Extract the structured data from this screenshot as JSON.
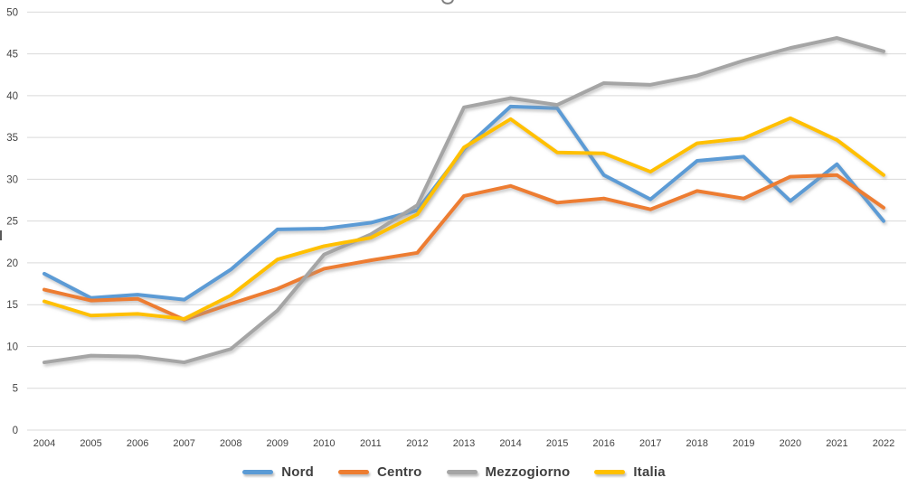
{
  "chart_data": {
    "type": "line",
    "title_cropped": true,
    "title_visible_fragment": "∪",
    "x": [
      "2004",
      "2005",
      "2006",
      "2007",
      "2008",
      "2009",
      "2010",
      "2011",
      "2012",
      "2013",
      "2014",
      "2015",
      "2016",
      "2017",
      "2018",
      "2019",
      "2020",
      "2021",
      "2022"
    ],
    "series": [
      {
        "name": "Nord",
        "color": "#5B9BD5",
        "values": [
          18.7,
          15.8,
          16.2,
          15.6,
          19.2,
          24.0,
          24.1,
          24.8,
          26.3,
          33.6,
          38.7,
          38.5,
          30.5,
          27.6,
          32.2,
          32.7,
          27.4,
          31.8,
          25.0
        ]
      },
      {
        "name": "Centro",
        "color": "#ED7D31",
        "values": [
          16.8,
          15.5,
          15.7,
          13.2,
          15.1,
          16.9,
          19.3,
          20.3,
          21.2,
          28.0,
          29.2,
          27.2,
          27.7,
          26.4,
          28.6,
          27.7,
          30.3,
          30.5,
          26.6
        ]
      },
      {
        "name": "Mezzogiorno",
        "color": "#A5A5A5",
        "values": [
          8.1,
          8.9,
          8.8,
          8.1,
          9.7,
          14.3,
          21.0,
          23.4,
          26.9,
          38.6,
          39.7,
          38.9,
          41.5,
          41.3,
          42.4,
          44.2,
          45.7,
          46.9,
          45.3
        ]
      },
      {
        "name": "Italia",
        "color": "#FFC000",
        "values": [
          15.4,
          13.7,
          13.9,
          13.3,
          16.1,
          20.4,
          22.0,
          23.0,
          25.8,
          33.8,
          37.2,
          33.2,
          33.1,
          30.9,
          34.3,
          34.9,
          37.3,
          34.7,
          30.5
        ]
      }
    ],
    "y_axis": {
      "min": 0,
      "max": 50,
      "step": 5,
      "ticks": [
        "0",
        "5",
        "10",
        "15",
        "20",
        "25",
        "30",
        "35",
        "40",
        "45",
        "50"
      ]
    },
    "grid": "horizontal",
    "gridline_color": "#D9D9D9",
    "label_color": "#444444",
    "legend_position": "bottom"
  }
}
